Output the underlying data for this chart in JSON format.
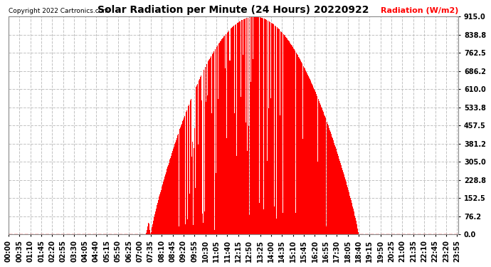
{
  "title": "Solar Radiation per Minute (24 Hours) 20220922",
  "copyright_text": "Copyright 2022 Cartronics.com",
  "ylabel": "Radiation (W/m2)",
  "ylabel_color": "#ff0000",
  "background_color": "#ffffff",
  "bar_color": "#ff0000",
  "line_color": "#ff0000",
  "grid_color": "#bbbbbb",
  "yticks": [
    0.0,
    76.2,
    152.5,
    228.8,
    305.0,
    381.2,
    457.5,
    533.8,
    610.0,
    686.2,
    762.5,
    838.8,
    915.0
  ],
  "ymax": 915.0,
  "ymin": 0.0,
  "total_minutes": 1440,
  "sunrise_minute": 455,
  "sunset_minute": 1120,
  "peak_minute": 800,
  "peak_value": 915.0,
  "xtick_interval": 35
}
